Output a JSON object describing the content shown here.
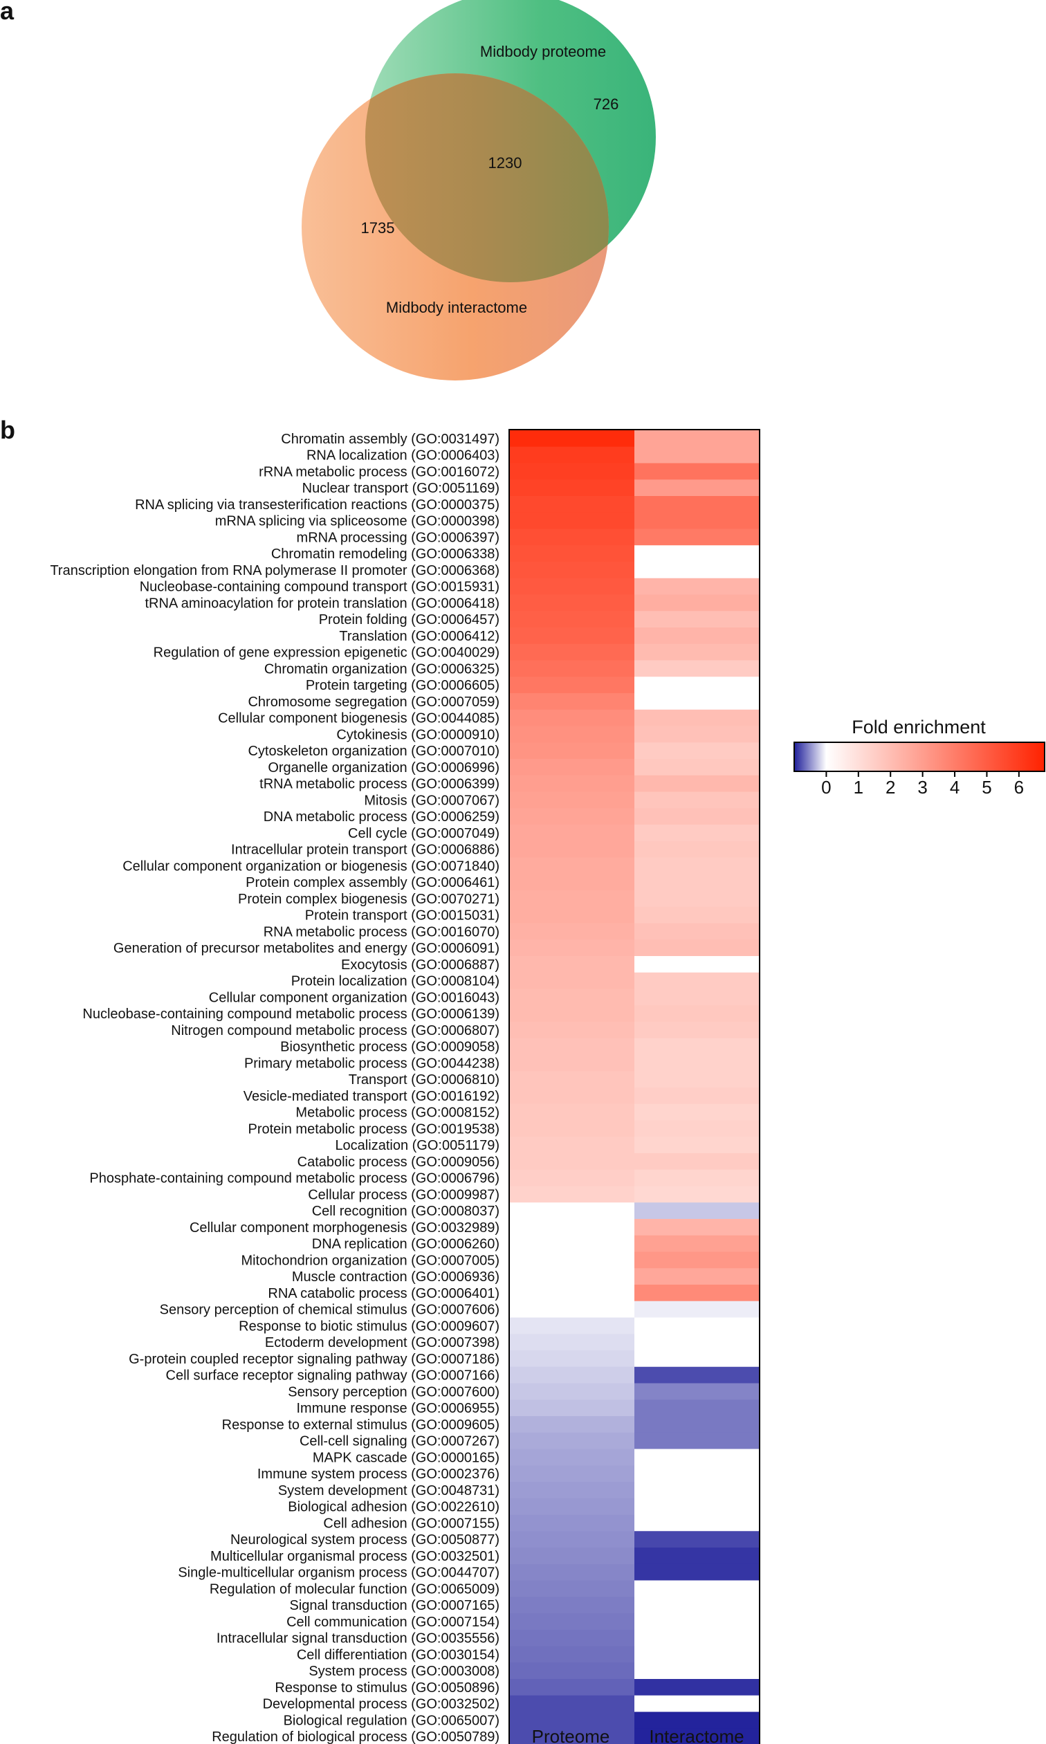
{
  "panels": {
    "a": "a",
    "b": "b"
  },
  "chart_data": [
    {
      "type": "venn",
      "sets": [
        {
          "name": "Midbody proteome",
          "unique": 726,
          "color": "#3fb979"
        },
        {
          "name": "Midbody interactome",
          "unique": 1735,
          "color": "#f59a5e"
        }
      ],
      "overlap": 1230,
      "overlap_color": "#b08c53"
    },
    {
      "type": "heatmap",
      "columns": [
        "Proteome",
        "Interactome"
      ],
      "colorbar": {
        "title": "Fold enrichment",
        "ticks": [
          0,
          1,
          2,
          3,
          4,
          5,
          6
        ],
        "range": [
          -1,
          6.8
        ],
        "low_color": "#1f1f9a",
        "mid_color": "#ffffff",
        "high_color": "#ff2200"
      },
      "rows": [
        [
          "Chromatin assembly (GO:0031497)",
          6.5,
          2.8
        ],
        [
          "RNA localization (GO:0006403)",
          6.0,
          2.8
        ],
        [
          "rRNA metabolic process (GO:0016072)",
          5.9,
          4.3
        ],
        [
          "Nuclear transport (GO:0051169)",
          5.8,
          3.1
        ],
        [
          "RNA splicing via transesterification reactions (GO:0000375)",
          5.6,
          4.4
        ],
        [
          "mRNA splicing via spliceosome (GO:0000398)",
          5.6,
          4.4
        ],
        [
          "mRNA processing (GO:0006397)",
          5.4,
          4.1
        ],
        [
          "Chromatin remodeling (GO:0006338)",
          5.3,
          0
        ],
        [
          "Transcription elongation from RNA polymerase II promoter (GO:0006368)",
          5.2,
          0
        ],
        [
          "Nucleobase-containing compound transport (GO:0015931)",
          5.1,
          2.3
        ],
        [
          "tRNA aminoacylation for protein translation (GO:0006418)",
          5.0,
          2.5
        ],
        [
          "Protein folding (GO:0006457)",
          4.9,
          2.0
        ],
        [
          "Translation (GO:0006412)",
          4.8,
          2.3
        ],
        [
          "Regulation of gene expression epigenetic (GO:0040029)",
          4.6,
          2.1
        ],
        [
          "Chromatin organization (GO:0006325)",
          4.4,
          1.6
        ],
        [
          "Protein targeting (GO:0006605)",
          4.2,
          0
        ],
        [
          "Chromosome segregation (GO:0007059)",
          3.8,
          0
        ],
        [
          "Cellular component biogenesis (GO:0044085)",
          3.5,
          2.0
        ],
        [
          "Cytokinesis (GO:0000910)",
          3.4,
          1.9
        ],
        [
          "Cytoskeleton organization (GO:0007010)",
          3.3,
          1.6
        ],
        [
          "Organelle organization (GO:0006996)",
          3.1,
          1.7
        ],
        [
          "tRNA metabolic process (GO:0006399)",
          3.0,
          2.2
        ],
        [
          "Mitosis (GO:0007067)",
          2.9,
          1.8
        ],
        [
          "DNA metabolic process (GO:0006259)",
          2.8,
          1.9
        ],
        [
          "Cell cycle (GO:0007049)",
          2.7,
          1.6
        ],
        [
          "Intracellular protein transport (GO:0006886)",
          2.7,
          1.7
        ],
        [
          "Cellular component organization or biogenesis (GO:0071840)",
          2.6,
          1.6
        ],
        [
          "Protein complex assembly (GO:0006461)",
          2.6,
          1.6
        ],
        [
          "Protein complex biogenesis (GO:0070271)",
          2.5,
          1.6
        ],
        [
          "Protein transport (GO:0015031)",
          2.5,
          1.7
        ],
        [
          "RNA metabolic process (GO:0016070)",
          2.4,
          1.9
        ],
        [
          "Generation of precursor metabolites and energy (GO:0006091)",
          2.3,
          2.0
        ],
        [
          "Exocytosis (GO:0006887)",
          2.2,
          0
        ],
        [
          "Protein localization (GO:0008104)",
          2.2,
          1.6
        ],
        [
          "Cellular component organization (GO:0016043)",
          2.1,
          1.6
        ],
        [
          "Nucleobase-containing compound metabolic process (GO:0006139)",
          2.1,
          1.7
        ],
        [
          "Nitrogen compound metabolic process (GO:0006807)",
          2.0,
          1.6
        ],
        [
          "Biosynthetic process (GO:0009058)",
          1.9,
          1.4
        ],
        [
          "Primary metabolic process (GO:0044238)",
          1.9,
          1.4
        ],
        [
          "Transport (GO:0006810)",
          1.8,
          1.4
        ],
        [
          "Vesicle-mediated transport (GO:0016192)",
          1.8,
          1.5
        ],
        [
          "Metabolic process (GO:0008152)",
          1.7,
          1.3
        ],
        [
          "Protein metabolic process (GO:0019538)",
          1.7,
          1.4
        ],
        [
          "Localization (GO:0051179)",
          1.6,
          1.3
        ],
        [
          "Catabolic process (GO:0009056)",
          1.6,
          1.6
        ],
        [
          "Phosphate-containing compound metabolic process (GO:0006796)",
          1.5,
          1.3
        ],
        [
          "Cellular process (GO:0009987)",
          1.4,
          1.2
        ],
        [
          "Cell recognition (GO:0008037)",
          0,
          -0.25
        ],
        [
          "Cellular component morphogenesis (GO:0032989)",
          0,
          2.3
        ],
        [
          "DNA replication (GO:0006260)",
          0,
          2.9
        ],
        [
          "Mitochondrion organization (GO:0007005)",
          0,
          3.2
        ],
        [
          "Muscle contraction (GO:0006936)",
          0,
          2.7
        ],
        [
          "RNA catabolic process (GO:0006401)",
          0,
          3.6
        ],
        [
          "Sensory perception of chemical stimulus (GO:0007606)",
          0,
          -0.08
        ],
        [
          "Response to biotic stimulus (GO:0009607)",
          -0.12,
          0
        ],
        [
          "Ectoderm development (GO:0007398)",
          -0.15,
          0
        ],
        [
          "G-protein coupled receptor signaling pathway (GO:0007186)",
          -0.18,
          0
        ],
        [
          "Cell surface receptor signaling pathway (GO:0007166)",
          -0.22,
          -0.8
        ],
        [
          "Sensory perception (GO:0007600)",
          -0.25,
          -0.55
        ],
        [
          "Immune response (GO:0006955)",
          -0.28,
          -0.6
        ],
        [
          "Response to external stimulus (GO:0009605)",
          -0.35,
          -0.6
        ],
        [
          "Cell-cell signaling (GO:0007267)",
          -0.38,
          -0.6
        ],
        [
          "MAPK cascade (GO:0000165)",
          -0.4,
          0
        ],
        [
          "Immune system process (GO:0002376)",
          -0.42,
          0
        ],
        [
          "System development (GO:0048731)",
          -0.44,
          0
        ],
        [
          "Biological adhesion (GO:0022610)",
          -0.46,
          0
        ],
        [
          "Cell adhesion (GO:0007155)",
          -0.48,
          0
        ],
        [
          "Neurological system process (GO:0050877)",
          -0.5,
          -0.82
        ],
        [
          "Multicellular organismal process (GO:0032501)",
          -0.52,
          -0.9
        ],
        [
          "Single-multicellular organism process (GO:0044707)",
          -0.54,
          -0.9
        ],
        [
          "Regulation of molecular function (GO:0065009)",
          -0.56,
          0
        ],
        [
          "Signal transduction (GO:0007165)",
          -0.58,
          0
        ],
        [
          "Cell communication (GO:0007154)",
          -0.6,
          0
        ],
        [
          "Intracellular signal transduction (GO:0035556)",
          -0.62,
          0
        ],
        [
          "Cell differentiation (GO:0030154)",
          -0.64,
          0
        ],
        [
          "System process (GO:0003008)",
          -0.66,
          0
        ],
        [
          "Response to stimulus (GO:0050896)",
          -0.7,
          -0.92
        ],
        [
          "Developmental process (GO:0032502)",
          -0.8,
          0
        ],
        [
          "Biological regulation (GO:0065007)",
          -0.8,
          -0.98
        ],
        [
          "Regulation of biological process (GO:0050789)",
          -0.8,
          -0.98
        ]
      ]
    }
  ]
}
